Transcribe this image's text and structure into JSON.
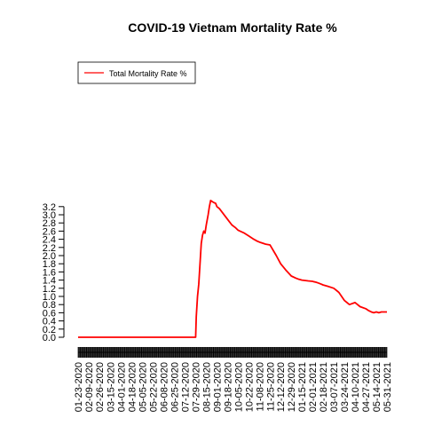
{
  "chart_data": {
    "type": "line",
    "title": "COVID-19 Vietnam Mortality Rate %",
    "xlabel": "",
    "ylabel": "",
    "ylim": [
      0,
      3.3
    ],
    "y_ticks": [
      "0.0",
      "0.2",
      "0.4",
      "0.6",
      "0.8",
      "1.0",
      "1.2",
      "1.4",
      "1.6",
      "1.8",
      "2.0",
      "2.2",
      "2.4",
      "2.6",
      "2.8",
      "3.0",
      "3.2"
    ],
    "x_ticks": [
      "01-23-2020",
      "02-09-2020",
      "02-26-2020",
      "03-15-2020",
      "04-01-2020",
      "04-18-2020",
      "05-05-2020",
      "05-22-2020",
      "06-08-2020",
      "06-25-2020",
      "07-12-2020",
      "07-29-2020",
      "08-15-2020",
      "09-01-2020",
      "09-18-2020",
      "10-05-2020",
      "10-22-2020",
      "11-08-2020",
      "11-25-2020",
      "12-12-2020",
      "12-29-2020",
      "01-15-2021",
      "02-01-2021",
      "02-18-2021",
      "03-07-2021",
      "03-24-2021",
      "04-10-2021",
      "04-27-2021",
      "05-14-2021",
      "05-31-2021"
    ],
    "legend": {
      "position": "top-left",
      "entries": [
        {
          "label": "Total Mortality Rate %",
          "color": "#ff0000"
        }
      ]
    },
    "grid": false,
    "series": [
      {
        "name": "Total Mortality Rate %",
        "color": "#ff0000",
        "x": [
          "01-23-2020",
          "07-29-2020",
          "07-30-2020",
          "08-01-2020",
          "08-03-2020",
          "08-05-2020",
          "08-07-2020",
          "08-09-2020",
          "08-11-2020",
          "08-13-2020",
          "08-15-2020",
          "08-18-2020",
          "08-20-2020",
          "08-22-2020",
          "08-24-2020",
          "08-27-2020",
          "08-30-2020",
          "09-01-2020",
          "09-05-2020",
          "09-10-2020",
          "09-15-2020",
          "09-20-2020",
          "09-25-2020",
          "10-01-2020",
          "10-05-2020",
          "10-15-2020",
          "10-22-2020",
          "10-30-2020",
          "11-05-2020",
          "11-10-2020",
          "11-18-2020",
          "11-25-2020",
          "12-05-2020",
          "12-12-2020",
          "12-20-2020",
          "12-29-2020",
          "01-05-2021",
          "01-10-2021",
          "01-15-2021",
          "01-25-2021",
          "02-01-2021",
          "02-03-2021",
          "02-06-2021",
          "02-10-2021",
          "02-15-2021",
          "02-18-2021",
          "02-25-2021",
          "03-07-2021",
          "03-15-2021",
          "03-24-2021",
          "04-01-2021",
          "04-10-2021",
          "04-18-2021",
          "04-27-2021",
          "05-02-2021",
          "05-06-2021",
          "05-10-2021",
          "05-14-2021",
          "05-18-2021",
          "05-22-2021",
          "05-26-2021",
          "05-31-2021"
        ],
        "values": [
          0.0,
          0.0,
          0.5,
          1.0,
          1.3,
          1.8,
          2.3,
          2.5,
          2.6,
          2.55,
          2.75,
          3.0,
          3.2,
          3.35,
          3.33,
          3.3,
          3.28,
          3.2,
          3.15,
          3.05,
          2.95,
          2.85,
          2.75,
          2.68,
          2.62,
          2.55,
          2.48,
          2.4,
          2.35,
          2.32,
          2.28,
          2.26,
          2.0,
          1.8,
          1.65,
          1.5,
          1.45,
          1.42,
          1.4,
          1.38,
          1.37,
          1.36,
          1.35,
          1.33,
          1.3,
          1.28,
          1.25,
          1.2,
          1.1,
          0.9,
          0.8,
          0.85,
          0.75,
          0.7,
          0.65,
          0.62,
          0.6,
          0.62,
          0.6,
          0.62,
          0.62,
          0.62
        ]
      }
    ]
  }
}
